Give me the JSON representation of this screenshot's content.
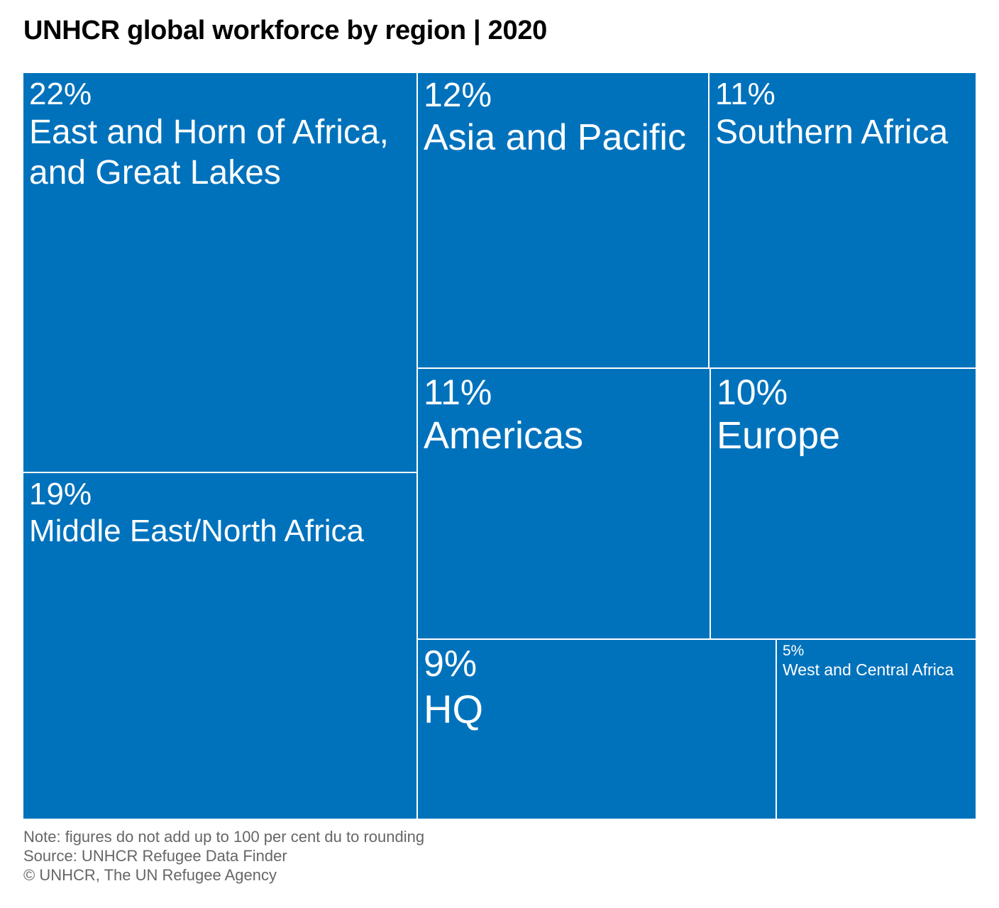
{
  "title": "UNHCR global workforce by region | 2020",
  "chart_data": {
    "type": "treemap",
    "title": "UNHCR global workforce by region | 2020",
    "unit": "%",
    "color": "#0072bc",
    "items": [
      {
        "label": "East and Horn of Africa, and Great Lakes",
        "value": 22,
        "display": "22%"
      },
      {
        "label": "Middle East/North Africa",
        "value": 19,
        "display": "19%"
      },
      {
        "label": "Asia and Pacific",
        "value": 12,
        "display": "12%"
      },
      {
        "label": "Southern Africa",
        "value": 11,
        "display": "11%"
      },
      {
        "label": "Americas",
        "value": 11,
        "display": "11%"
      },
      {
        "label": "Europe",
        "value": 10,
        "display": "10%"
      },
      {
        "label": "HQ",
        "value": 9,
        "display": "9%"
      },
      {
        "label": "West and Central Africa",
        "value": 5,
        "display": "5%"
      }
    ]
  },
  "footer": {
    "note": "Note: figures do not add up to 100 per cent du to rounding",
    "source": "Source: UNHCR Refugee Data Finder",
    "credit": "© UNHCR, The UN Refugee Agency"
  }
}
